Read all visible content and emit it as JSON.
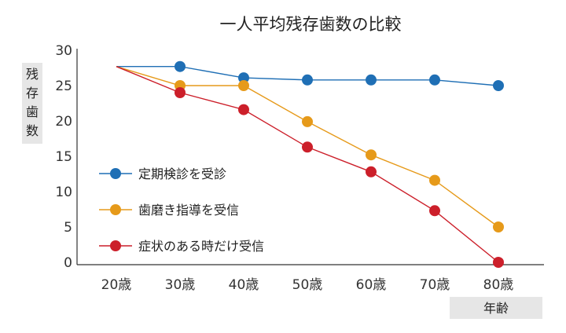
{
  "chart_data": {
    "type": "line",
    "title": "一人平均残存歯数の比較",
    "ylabel": "残存歯数",
    "xlabel": "年齢",
    "categories": [
      "20歳",
      "30歳",
      "40歳",
      "50歳",
      "60歳",
      "70歳",
      "80歳"
    ],
    "yticks": [
      "30",
      "25",
      "20",
      "15",
      "10",
      "5",
      "0"
    ],
    "ylim": [
      0,
      30
    ],
    "grid": false,
    "legend_position": "left",
    "series": [
      {
        "name": "定期検診を受診",
        "color": "#1f6fb5",
        "values": [
          27.7,
          27.7,
          26.1,
          25.8,
          25.8,
          25.8,
          25.0
        ]
      },
      {
        "name": "歯磨き指導を受信",
        "color": "#e69a1a",
        "values": [
          27.7,
          25.0,
          25.0,
          19.9,
          15.2,
          11.6,
          5.0
        ]
      },
      {
        "name": "症状のある時だけ受信",
        "color": "#cc1f2a",
        "values": [
          27.7,
          24.0,
          21.6,
          16.3,
          12.8,
          7.3,
          0.0
        ]
      }
    ]
  }
}
